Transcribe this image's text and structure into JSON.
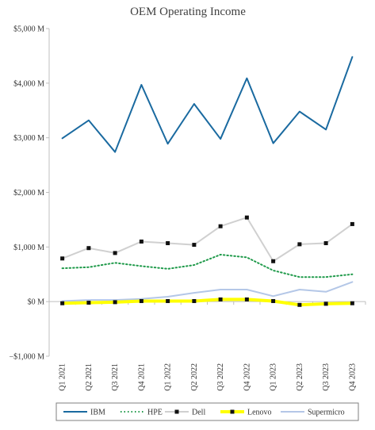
{
  "chart_data": {
    "type": "line",
    "title": "OEM Operating Income",
    "xlabel": "",
    "ylabel": "",
    "categories": [
      "Q1 2021",
      "Q2 2021",
      "Q3 2021",
      "Q4 2021",
      "Q1 2022",
      "Q2 2022",
      "Q3 2022",
      "Q4 2022",
      "Q1 2023",
      "Q2 2023",
      "Q3 2023",
      "Q4 2023"
    ],
    "ylim": [
      -1000,
      5000
    ],
    "yticks": [
      -1000,
      0,
      1000,
      2000,
      3000,
      4000,
      5000
    ],
    "ytick_labels": [
      "−$1,000 M",
      "$0 M",
      "$1,000 M",
      "$2,000 M",
      "$3,000 M",
      "$4,000 M",
      "$5,000 M"
    ],
    "grid": false,
    "legend_position": "bottom",
    "series": [
      {
        "name": "IBM",
        "color": "#1a6aa0",
        "style": "solid",
        "marker": "none",
        "values": [
          2990,
          3320,
          2740,
          3970,
          2890,
          3620,
          2980,
          4090,
          2900,
          3480,
          3150,
          4480
        ]
      },
      {
        "name": "HPE",
        "color": "#1f9a4a",
        "style": "dotted",
        "marker": "none",
        "values": [
          610,
          630,
          710,
          650,
          600,
          670,
          860,
          810,
          570,
          450,
          450,
          500
        ]
      },
      {
        "name": "Dell",
        "color": "#d0d0d0",
        "style": "solid",
        "marker": "square",
        "values": [
          790,
          980,
          890,
          1100,
          1070,
          1040,
          1380,
          1540,
          740,
          1050,
          1070,
          1420
        ]
      },
      {
        "name": "Lenovo",
        "color": "#ffff00",
        "style": "solid",
        "marker": "square",
        "values": [
          -30,
          -20,
          -10,
          10,
          10,
          10,
          40,
          40,
          10,
          -60,
          -40,
          -30
        ]
      },
      {
        "name": "Supermicro",
        "color": "#b4c7e7",
        "style": "solid",
        "marker": "none",
        "values": [
          10,
          30,
          30,
          50,
          90,
          160,
          220,
          220,
          100,
          220,
          180,
          360
        ]
      }
    ]
  }
}
